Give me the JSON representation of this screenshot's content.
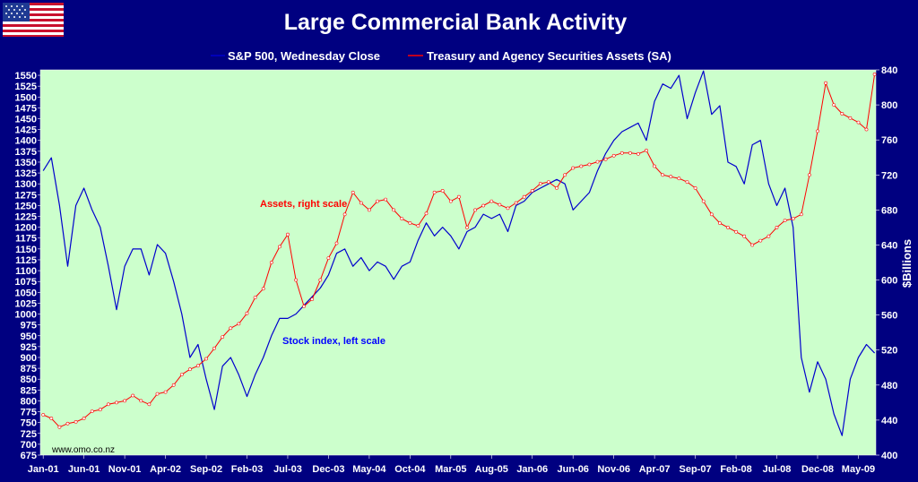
{
  "chart_data": {
    "type": "line",
    "title": "Large Commercial Bank Activity",
    "ylabel_right": "$Billions",
    "source": "www.omo.co.nz",
    "legend": {
      "placement": "top",
      "entries": [
        "S&P 500, Wednesday Close",
        "Treasury and Agency Securities Assets (SA)"
      ]
    },
    "annotations": [
      {
        "text": "Assets, right scale",
        "color": "#ff0000"
      },
      {
        "text": "Stock index, left scale",
        "color": "#0000ff"
      }
    ],
    "x_ticks": [
      "Jan-01",
      "Jun-01",
      "Nov-01",
      "Apr-02",
      "Sep-02",
      "Feb-03",
      "Jul-03",
      "Dec-03",
      "May-04",
      "Oct-04",
      "Mar-05",
      "Aug-05",
      "Jan-06",
      "Jun-06",
      "Nov-06",
      "Apr-07",
      "Sep-07",
      "Feb-08",
      "Jul-08",
      "Dec-08",
      "May-09"
    ],
    "x_range": [
      "Jan-01",
      "Jul-09"
    ],
    "y_left": {
      "min": 675,
      "max": 1550,
      "step": 25,
      "axis_max": 1562.5
    },
    "y_right": {
      "min": 400,
      "max": 840,
      "step": 40
    },
    "plot_background": "#ccffcc",
    "grid": false,
    "series": [
      {
        "name": "S&P 500, Wednesday Close",
        "axis": "left",
        "color": "#0000cc",
        "points": [
          [
            "Jan-01",
            1330
          ],
          [
            "Feb-01",
            1360
          ],
          [
            "Mar-01",
            1250
          ],
          [
            "Apr-01",
            1110
          ],
          [
            "May-01",
            1250
          ],
          [
            "Jun-01",
            1290
          ],
          [
            "Jul-01",
            1240
          ],
          [
            "Aug-01",
            1200
          ],
          [
            "Sep-01",
            1110
          ],
          [
            "Oct-01",
            1010
          ],
          [
            "Nov-01",
            1110
          ],
          [
            "Dec-01",
            1150
          ],
          [
            "Jan-02",
            1150
          ],
          [
            "Feb-02",
            1090
          ],
          [
            "Mar-02",
            1160
          ],
          [
            "Apr-02",
            1140
          ],
          [
            "May-02",
            1075
          ],
          [
            "Jun-02",
            1000
          ],
          [
            "Jul-02",
            900
          ],
          [
            "Aug-02",
            930
          ],
          [
            "Sep-02",
            850
          ],
          [
            "Oct-02",
            780
          ],
          [
            "Nov-02",
            880
          ],
          [
            "Dec-02",
            900
          ],
          [
            "Jan-03",
            860
          ],
          [
            "Feb-03",
            810
          ],
          [
            "Mar-03",
            860
          ],
          [
            "Apr-03",
            900
          ],
          [
            "May-03",
            950
          ],
          [
            "Jun-03",
            990
          ],
          [
            "Jul-03",
            990
          ],
          [
            "Aug-03",
            1000
          ],
          [
            "Sep-03",
            1020
          ],
          [
            "Oct-03",
            1040
          ],
          [
            "Nov-03",
            1060
          ],
          [
            "Dec-03",
            1090
          ],
          [
            "Jan-04",
            1140
          ],
          [
            "Feb-04",
            1150
          ],
          [
            "Mar-04",
            1110
          ],
          [
            "Apr-04",
            1130
          ],
          [
            "May-04",
            1100
          ],
          [
            "Jun-04",
            1120
          ],
          [
            "Jul-04",
            1110
          ],
          [
            "Aug-04",
            1080
          ],
          [
            "Sep-04",
            1110
          ],
          [
            "Oct-04",
            1120
          ],
          [
            "Nov-04",
            1170
          ],
          [
            "Dec-04",
            1210
          ],
          [
            "Jan-05",
            1180
          ],
          [
            "Feb-05",
            1200
          ],
          [
            "Mar-05",
            1180
          ],
          [
            "Apr-05",
            1150
          ],
          [
            "May-05",
            1190
          ],
          [
            "Jun-05",
            1200
          ],
          [
            "Jul-05",
            1230
          ],
          [
            "Aug-05",
            1220
          ],
          [
            "Sep-05",
            1230
          ],
          [
            "Oct-05",
            1190
          ],
          [
            "Nov-05",
            1250
          ],
          [
            "Dec-05",
            1260
          ],
          [
            "Jan-06",
            1280
          ],
          [
            "Feb-06",
            1290
          ],
          [
            "Mar-06",
            1300
          ],
          [
            "Apr-06",
            1310
          ],
          [
            "May-06",
            1300
          ],
          [
            "Jun-06",
            1240
          ],
          [
            "Jul-06",
            1260
          ],
          [
            "Aug-06",
            1280
          ],
          [
            "Sep-06",
            1330
          ],
          [
            "Oct-06",
            1370
          ],
          [
            "Nov-06",
            1400
          ],
          [
            "Dec-06",
            1420
          ],
          [
            "Jan-07",
            1430
          ],
          [
            "Feb-07",
            1440
          ],
          [
            "Mar-07",
            1400
          ],
          [
            "Apr-07",
            1490
          ],
          [
            "May-07",
            1530
          ],
          [
            "Jun-07",
            1520
          ],
          [
            "Jul-07",
            1550
          ],
          [
            "Aug-07",
            1450
          ],
          [
            "Sep-07",
            1510
          ],
          [
            "Oct-07",
            1560
          ],
          [
            "Nov-07",
            1460
          ],
          [
            "Dec-07",
            1480
          ],
          [
            "Jan-08",
            1350
          ],
          [
            "Feb-08",
            1340
          ],
          [
            "Mar-08",
            1300
          ],
          [
            "Apr-08",
            1390
          ],
          [
            "May-08",
            1400
          ],
          [
            "Jun-08",
            1300
          ],
          [
            "Jul-08",
            1250
          ],
          [
            "Aug-08",
            1290
          ],
          [
            "Sep-08",
            1200
          ],
          [
            "Oct-08",
            900
          ],
          [
            "Nov-08",
            820
          ],
          [
            "Dec-08",
            890
          ],
          [
            "Jan-09",
            850
          ],
          [
            "Feb-09",
            770
          ],
          [
            "Mar-09",
            720
          ],
          [
            "Apr-09",
            850
          ],
          [
            "May-09",
            900
          ],
          [
            "Jun-09",
            930
          ],
          [
            "Jul-09",
            910
          ]
        ]
      },
      {
        "name": "Treasury and Agency Securities Assets (SA)",
        "axis": "right",
        "color": "#ff0000",
        "points": [
          [
            "Jan-01",
            446
          ],
          [
            "Feb-01",
            442
          ],
          [
            "Mar-01",
            432
          ],
          [
            "Apr-01",
            436
          ],
          [
            "May-01",
            438
          ],
          [
            "Jun-01",
            442
          ],
          [
            "Jul-01",
            450
          ],
          [
            "Aug-01",
            452
          ],
          [
            "Sep-01",
            458
          ],
          [
            "Oct-01",
            460
          ],
          [
            "Nov-01",
            462
          ],
          [
            "Dec-01",
            468
          ],
          [
            "Jan-02",
            462
          ],
          [
            "Feb-02",
            458
          ],
          [
            "Mar-02",
            470
          ],
          [
            "Apr-02",
            472
          ],
          [
            "May-02",
            480
          ],
          [
            "Jun-02",
            492
          ],
          [
            "Jul-02",
            498
          ],
          [
            "Aug-02",
            502
          ],
          [
            "Sep-02",
            510
          ],
          [
            "Oct-02",
            522
          ],
          [
            "Nov-02",
            535
          ],
          [
            "Dec-02",
            545
          ],
          [
            "Jan-03",
            550
          ],
          [
            "Feb-03",
            562
          ],
          [
            "Mar-03",
            580
          ],
          [
            "Apr-03",
            590
          ],
          [
            "May-03",
            620
          ],
          [
            "Jun-03",
            638
          ],
          [
            "Jul-03",
            652
          ],
          [
            "Aug-03",
            600
          ],
          [
            "Sep-03",
            570
          ],
          [
            "Oct-03",
            578
          ],
          [
            "Nov-03",
            600
          ],
          [
            "Dec-03",
            625
          ],
          [
            "Jan-04",
            642
          ],
          [
            "Feb-04",
            675
          ],
          [
            "Mar-04",
            700
          ],
          [
            "Apr-04",
            688
          ],
          [
            "May-04",
            680
          ],
          [
            "Jun-04",
            690
          ],
          [
            "Jul-04",
            692
          ],
          [
            "Aug-04",
            680
          ],
          [
            "Sep-04",
            670
          ],
          [
            "Oct-04",
            665
          ],
          [
            "Nov-04",
            662
          ],
          [
            "Dec-04",
            676
          ],
          [
            "Jan-05",
            700
          ],
          [
            "Feb-05",
            702
          ],
          [
            "Mar-05",
            690
          ],
          [
            "Apr-05",
            695
          ],
          [
            "May-05",
            660
          ],
          [
            "Jun-05",
            680
          ],
          [
            "Jul-05",
            685
          ],
          [
            "Aug-05",
            690
          ],
          [
            "Sep-05",
            686
          ],
          [
            "Oct-05",
            682
          ],
          [
            "Nov-05",
            688
          ],
          [
            "Dec-05",
            695
          ],
          [
            "Jan-06",
            702
          ],
          [
            "Feb-06",
            710
          ],
          [
            "Mar-06",
            712
          ],
          [
            "Apr-06",
            705
          ],
          [
            "May-06",
            720
          ],
          [
            "Jun-06",
            728
          ],
          [
            "Jul-06",
            730
          ],
          [
            "Aug-06",
            732
          ],
          [
            "Sep-06",
            735
          ],
          [
            "Oct-06",
            738
          ],
          [
            "Nov-06",
            742
          ],
          [
            "Dec-06",
            745
          ],
          [
            "Jan-07",
            745
          ],
          [
            "Feb-07",
            744
          ],
          [
            "Mar-07",
            748
          ],
          [
            "Apr-07",
            730
          ],
          [
            "May-07",
            720
          ],
          [
            "Jun-07",
            718
          ],
          [
            "Jul-07",
            716
          ],
          [
            "Aug-07",
            712
          ],
          [
            "Sep-07",
            705
          ],
          [
            "Oct-07",
            690
          ],
          [
            "Nov-07",
            675
          ],
          [
            "Dec-07",
            665
          ],
          [
            "Jan-08",
            660
          ],
          [
            "Feb-08",
            655
          ],
          [
            "Mar-08",
            650
          ],
          [
            "Apr-08",
            640
          ],
          [
            "May-08",
            645
          ],
          [
            "Jun-08",
            650
          ],
          [
            "Jul-08",
            660
          ],
          [
            "Aug-08",
            668
          ],
          [
            "Sep-08",
            670
          ],
          [
            "Oct-08",
            675
          ],
          [
            "Nov-08",
            720
          ],
          [
            "Dec-08",
            770
          ],
          [
            "Jan-09",
            825
          ],
          [
            "Feb-09",
            800
          ],
          [
            "Mar-09",
            790
          ],
          [
            "Apr-09",
            785
          ],
          [
            "May-09",
            780
          ],
          [
            "Jun-09",
            772
          ],
          [
            "Jul-09",
            835
          ]
        ]
      }
    ]
  }
}
